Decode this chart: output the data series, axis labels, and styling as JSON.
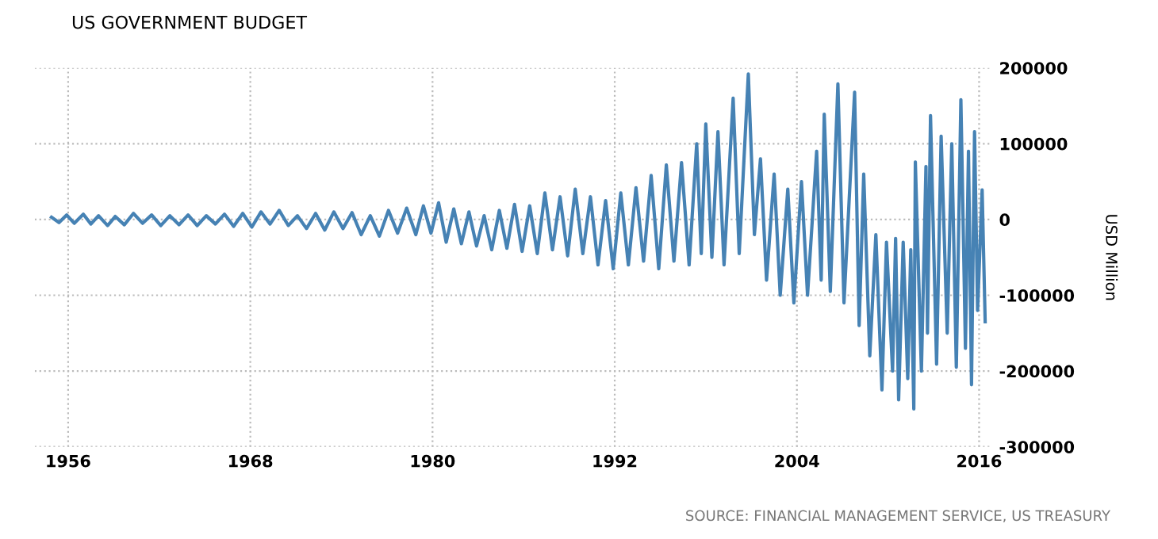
{
  "chart_data": {
    "type": "line",
    "title": "US GOVERNMENT BUDGET",
    "ylabel": "USD Million",
    "annotations": [
      "SOURCE: FINANCIAL MANAGEMENT SERVICE, US TREASURY"
    ],
    "xlim": [
      1953.8,
      2016.8
    ],
    "xticks": [
      1956,
      1968,
      1980,
      1992,
      2004,
      2016
    ],
    "ylim": [
      -300000,
      200000
    ],
    "yticks": [
      -300000,
      -200000,
      -100000,
      0,
      100000,
      200000
    ],
    "grid": true,
    "legend": false,
    "line_style": "solid",
    "marker": "none",
    "series": [
      {
        "color": "#4682b4",
        "x": [
          1954.9,
          1955.4,
          1955.9,
          1956.4,
          1957.0,
          1957.5,
          1958.0,
          1958.6,
          1959.1,
          1959.7,
          1960.3,
          1960.9,
          1961.5,
          1962.1,
          1962.7,
          1963.3,
          1963.9,
          1964.5,
          1965.1,
          1965.7,
          1966.3,
          1966.9,
          1967.5,
          1968.1,
          1968.7,
          1969.3,
          1969.9,
          1970.5,
          1971.1,
          1971.7,
          1972.3,
          1972.9,
          1973.5,
          1974.1,
          1974.7,
          1975.3,
          1975.9,
          1976.5,
          1977.1,
          1977.7,
          1978.3,
          1978.9,
          1979.4,
          1979.9,
          1980.4,
          1980.9,
          1981.4,
          1981.9,
          1982.4,
          1982.9,
          1983.4,
          1983.9,
          1984.4,
          1984.9,
          1985.4,
          1985.9,
          1986.4,
          1986.9,
          1987.4,
          1987.9,
          1988.4,
          1988.9,
          1989.4,
          1989.9,
          1990.4,
          1990.9,
          1991.4,
          1991.9,
          1992.4,
          1992.9,
          1993.4,
          1993.9,
          1994.4,
          1994.9,
          1995.4,
          1995.9,
          1996.4,
          1996.9,
          1997.4,
          1997.7,
          1998.0,
          1998.4,
          1998.8,
          1999.2,
          1999.8,
          2000.2,
          2000.8,
          2001.2,
          2001.6,
          2002.0,
          2002.5,
          2002.9,
          2003.4,
          2003.8,
          2004.3,
          2004.7,
          2005.3,
          2005.6,
          2005.8,
          2006.2,
          2006.7,
          2007.1,
          2007.8,
          2008.1,
          2008.4,
          2008.8,
          2009.2,
          2009.6,
          2009.9,
          2010.3,
          2010.5,
          2010.7,
          2011.0,
          2011.3,
          2011.5,
          2011.7,
          2011.8,
          2012.2,
          2012.5,
          2012.6,
          2012.8,
          2013.2,
          2013.5,
          2013.9,
          2014.2,
          2014.5,
          2014.8,
          2015.1,
          2015.3,
          2015.5,
          2015.7,
          2015.9,
          2016.2,
          2016.4
        ],
        "values": [
          3000,
          -4000,
          6000,
          -5000,
          7000,
          -6000,
          5000,
          -8000,
          4000,
          -7000,
          8000,
          -5000,
          6000,
          -8000,
          5000,
          -7000,
          6000,
          -8000,
          5000,
          -6000,
          7000,
          -9000,
          8000,
          -10000,
          10000,
          -6000,
          12000,
          -8000,
          5000,
          -12000,
          8000,
          -14000,
          10000,
          -12000,
          9000,
          -20000,
          5000,
          -22000,
          12000,
          -18000,
          15000,
          -20000,
          18000,
          -18000,
          22000,
          -30000,
          14000,
          -32000,
          10000,
          -35000,
          5000,
          -40000,
          12000,
          -38000,
          20000,
          -42000,
          18000,
          -45000,
          35000,
          -40000,
          30000,
          -48000,
          40000,
          -45000,
          30000,
          -60000,
          25000,
          -65000,
          35000,
          -60000,
          42000,
          -55000,
          58000,
          -65000,
          72000,
          -55000,
          75000,
          -60000,
          100000,
          -45000,
          126000,
          -50000,
          116000,
          -60000,
          160000,
          -45000,
          192000,
          -20000,
          80000,
          -80000,
          60000,
          -100000,
          40000,
          -110000,
          50000,
          -100000,
          90000,
          -80000,
          139000,
          -95000,
          179000,
          -110000,
          168000,
          -140000,
          60000,
          -180000,
          -20000,
          -225000,
          -30000,
          -200000,
          -25000,
          -238000,
          -30000,
          -210000,
          -40000,
          -250000,
          76000,
          -200000,
          70000,
          -150000,
          137000,
          -191000,
          110000,
          -150000,
          100000,
          -195000,
          158000,
          -170000,
          90000,
          -218000,
          116000,
          -120000,
          39000,
          -135000
        ]
      }
    ]
  }
}
